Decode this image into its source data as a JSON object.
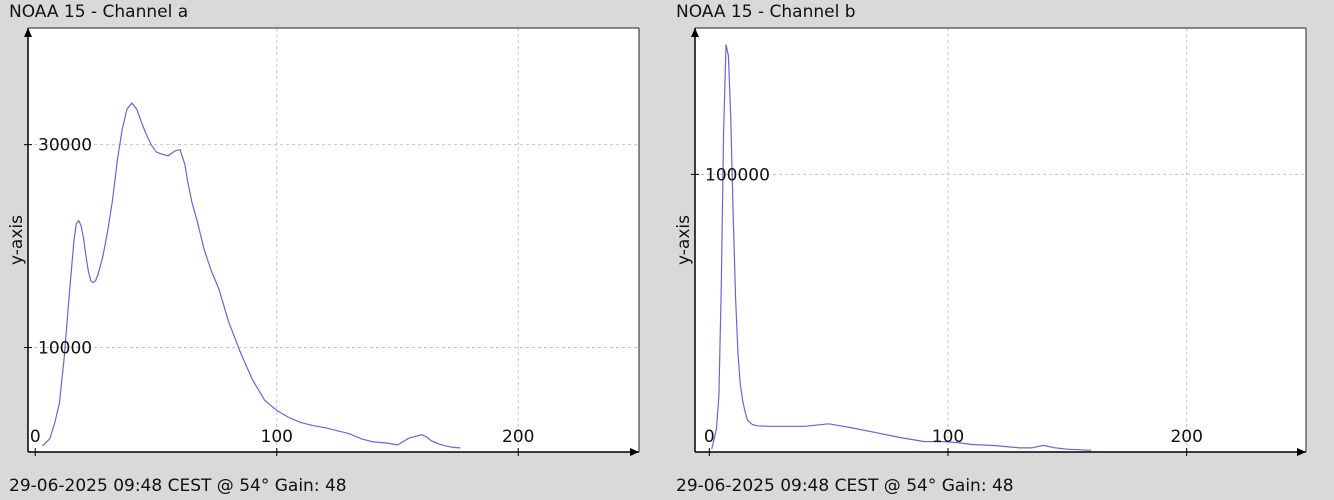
{
  "panels": [
    {
      "title": "NOAA 15 - Channel a",
      "footer": "29-06-2025 09:48 CEST @ 54° Gain: 48",
      "chart_data": {
        "type": "line",
        "title": "NOAA 15 - Channel a",
        "ylabel": "y-axis",
        "xlabel": "",
        "xlim": [
          -3,
          250
        ],
        "ylim": [
          -300,
          41500
        ],
        "xticks": [
          0,
          100,
          200
        ],
        "yticks": [
          10000,
          30000
        ],
        "grid": true,
        "line_color": "#6666dd",
        "x": [
          3,
          6,
          8,
          10,
          12,
          14,
          16,
          17,
          18,
          19,
          20,
          21,
          22,
          23,
          24,
          25,
          26,
          28,
          30,
          32,
          34,
          36,
          38,
          40,
          42,
          44,
          46,
          48,
          50,
          52,
          55,
          58,
          60,
          62,
          63,
          65,
          67,
          70,
          73,
          76,
          80,
          85,
          90,
          95,
          100,
          105,
          110,
          115,
          120,
          125,
          130,
          135,
          140,
          145,
          150,
          155,
          160,
          162,
          164,
          167,
          170,
          173,
          176
        ],
        "y": [
          300,
          1000,
          2500,
          4500,
          9000,
          15000,
          20500,
          22200,
          22500,
          22000,
          20800,
          19000,
          17500,
          16600,
          16400,
          16600,
          17200,
          19000,
          21500,
          24500,
          28500,
          31500,
          33500,
          34100,
          33500,
          32200,
          31000,
          30000,
          29300,
          29100,
          28900,
          29400,
          29500,
          28000,
          26500,
          24200,
          22500,
          19600,
          17500,
          15800,
          12600,
          9500,
          6800,
          4800,
          3800,
          3100,
          2600,
          2300,
          2100,
          1800,
          1500,
          1000,
          700,
          600,
          400,
          1100,
          1400,
          1200,
          800,
          500,
          300,
          150,
          100
        ]
      }
    },
    {
      "title": "NOAA 15 - Channel b",
      "footer": "29-06-2025 09:48 CEST @ 54° Gain: 48",
      "chart_data": {
        "type": "line",
        "title": "NOAA 15 - Channel b",
        "ylabel": "y-axis",
        "xlabel": "",
        "xlim": [
          -6,
          250
        ],
        "ylim": [
          -500,
          153000
        ],
        "xticks": [
          0,
          100,
          200
        ],
        "yticks": [
          100000
        ],
        "grid": true,
        "line_color": "#6666dd",
        "x": [
          1,
          3,
          4,
          5,
          6,
          7,
          8,
          9,
          10,
          11,
          12,
          13,
          14,
          15,
          16,
          18,
          20,
          25,
          30,
          40,
          50,
          55,
          60,
          70,
          80,
          90,
          100,
          105,
          110,
          120,
          130,
          135,
          140,
          145,
          150,
          160
        ],
        "y": [
          500,
          8000,
          20000,
          60000,
          115000,
          147000,
          143000,
          120000,
          85000,
          55000,
          35000,
          24000,
          18000,
          14000,
          11000,
          9500,
          9000,
          8800,
          8800,
          8800,
          9700,
          9000,
          8200,
          6500,
          4700,
          3300,
          3200,
          2800,
          2200,
          1800,
          1000,
          1000,
          1900,
          1000,
          500,
          100
        ]
      }
    }
  ]
}
